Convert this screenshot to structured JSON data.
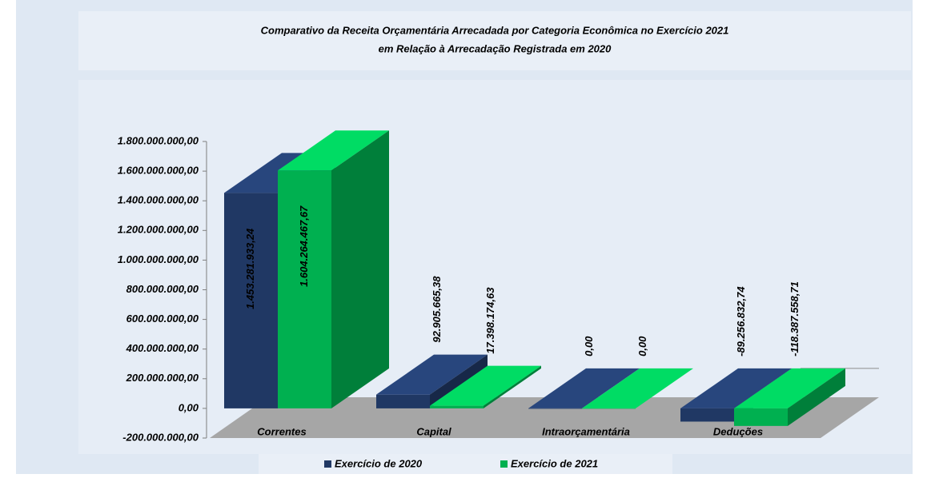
{
  "chart_data": {
    "type": "bar3d",
    "title": [
      "Comparativo da Receita Orçamentária Arrecadada por Categoria Econômica no Exercício 2021",
      "em Relação à Arrecadação Registrada em 2020"
    ],
    "categories": [
      "Correntes",
      "Capital",
      "Intraorçamentária",
      "Deduções"
    ],
    "series": [
      {
        "name": "Exercício de 2020",
        "color": "#203864",
        "values": [
          1453281933.24,
          92905665.38,
          0,
          -89256832.74
        ],
        "value_labels": [
          "1.453.281.933,24",
          "92.905.665,38",
          "0,00",
          "-89.256.832,74"
        ]
      },
      {
        "name": "Exercício de 2021",
        "color": "#00b050",
        "values": [
          1604264467.67,
          17398174.63,
          0,
          -118387558.71
        ],
        "value_labels": [
          "1.604.264.467,67",
          "17.398.174,63",
          "0,00",
          "-118.387.558,71"
        ]
      }
    ],
    "ylim": [
      -200000000,
      1800000000
    ],
    "yticks": [
      {
        "value": -200000000,
        "label": "-200.000.000,00"
      },
      {
        "value": 0,
        "label": "0,00"
      },
      {
        "value": 200000000,
        "label": "200.000.000,00"
      },
      {
        "value": 400000000,
        "label": "400.000.000,00"
      },
      {
        "value": 600000000,
        "label": "600.000.000,00"
      },
      {
        "value": 800000000,
        "label": "800.000.000,00"
      },
      {
        "value": 1000000000,
        "label": "1.000.000.000,00"
      },
      {
        "value": 1200000000,
        "label": "1.200.000.000,00"
      },
      {
        "value": 1400000000,
        "label": "1.400.000.000,00"
      },
      {
        "value": 1600000000,
        "label": "1.600.000.000,00"
      },
      {
        "value": 1800000000,
        "label": "1.800.000.000,00"
      }
    ],
    "legend": "bottom"
  }
}
